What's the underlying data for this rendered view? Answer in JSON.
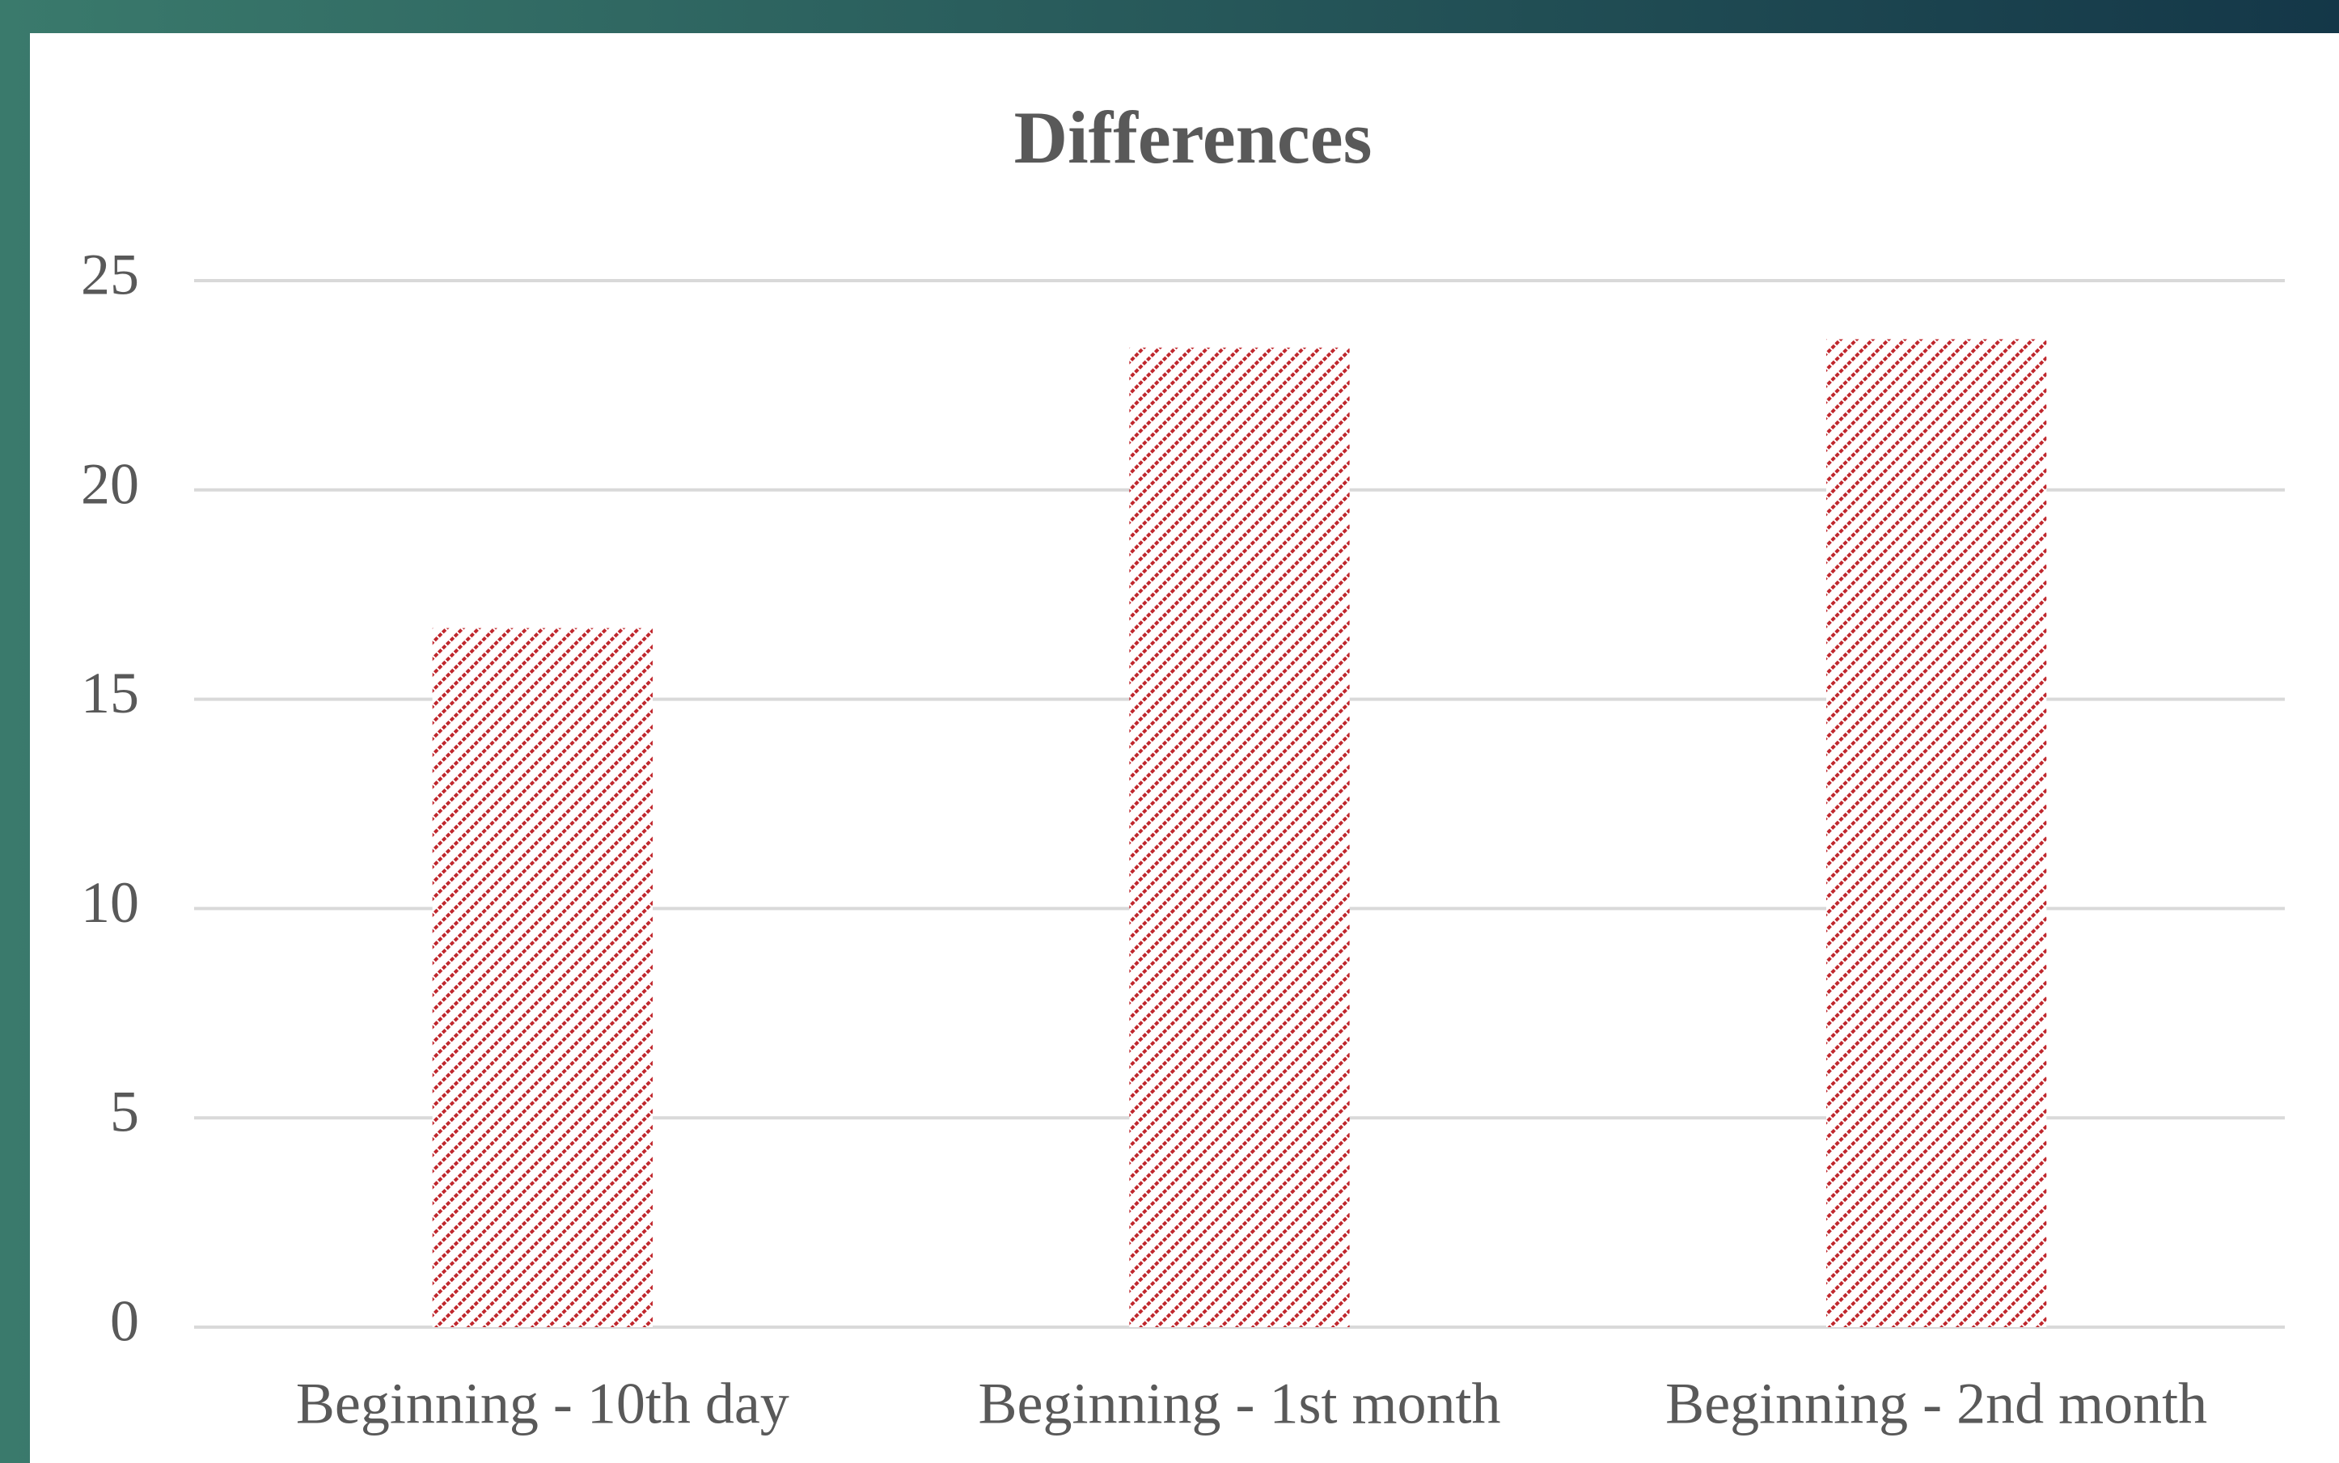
{
  "chart_data": {
    "type": "bar",
    "title": "Differences",
    "categories": [
      "Beginning - 10th day",
      "Beginning - 1st month",
      "Beginning - 2nd month"
    ],
    "values": [
      16.7,
      23.4,
      23.6
    ],
    "color": "#c0272d",
    "ylim": [
      0,
      25
    ],
    "yticks": [
      0,
      5,
      10,
      15,
      20,
      25
    ],
    "grid": true
  }
}
